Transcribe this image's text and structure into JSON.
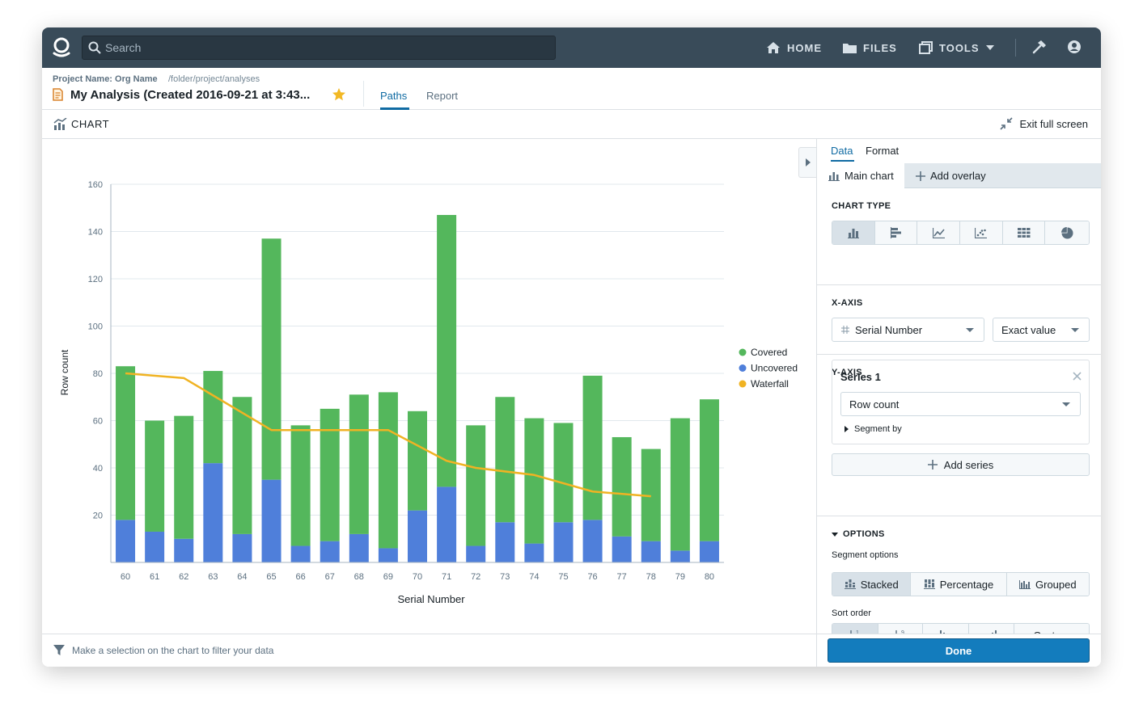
{
  "nav": {
    "search_placeholder": "Search",
    "home_label": "HOME",
    "files_label": "FILES",
    "tools_label": "TOOLS"
  },
  "header": {
    "project_name": "Project Name: Org Name",
    "path": "/folder/project/analyses",
    "title": "My Analysis (Created 2016-09-21 at 3:43...",
    "tabs": [
      {
        "label": "Paths"
      },
      {
        "label": "Report"
      }
    ]
  },
  "chartbar": {
    "label": "CHART",
    "exit_label": "Exit full screen"
  },
  "footer": {
    "hint": "Make a selection on the chart to filter your data"
  },
  "panel": {
    "tabs": [
      {
        "label": "Data"
      },
      {
        "label": "Format"
      }
    ],
    "subtabs": {
      "main": "Main chart",
      "overlay": "Add overlay"
    },
    "chart_type_title": "CHART TYPE",
    "x_axis_title": "X-AXIS",
    "x_field": "Serial Number",
    "x_mode": "Exact value",
    "y_axis_title": "Y-AXIS",
    "series_name": "Series 1",
    "series_metric": "Row count",
    "segment_by": "Segment by",
    "add_series": "Add series",
    "options_title": "OPTIONS",
    "segment_options_label": "Segment options",
    "segment_options": [
      "Stacked",
      "Percentage",
      "Grouped"
    ],
    "sort_order_label": "Sort order",
    "sort_custom": "Custom",
    "done": "Done"
  },
  "colors": {
    "covered": "#54b75c",
    "uncovered": "#4f7fda",
    "waterfall": "#f0b323",
    "accent": "#106ba3",
    "navbar": "#394b59"
  },
  "chart_data": {
    "type": "bar",
    "stacked": true,
    "xlabel": "Serial Number",
    "ylabel": "Row count",
    "ylim": [
      0,
      160
    ],
    "yticks": [
      20,
      40,
      60,
      80,
      100,
      120,
      140,
      160
    ],
    "legend_position": "right",
    "grid": true,
    "categories": [
      "60",
      "61",
      "62",
      "63",
      "64",
      "65",
      "66",
      "67",
      "68",
      "69",
      "70",
      "71",
      "72",
      "73",
      "74",
      "75",
      "76",
      "77",
      "78",
      "79",
      "80"
    ],
    "series": [
      {
        "name": "Uncovered",
        "values": [
          18,
          13,
          10,
          42,
          12,
          35,
          7,
          9,
          12,
          6,
          22,
          32,
          7,
          17,
          8,
          17,
          18,
          11,
          9,
          5,
          9
        ]
      },
      {
        "name": "Covered",
        "values": [
          65,
          47,
          52,
          39,
          58,
          102,
          51,
          56,
          59,
          66,
          42,
          115,
          51,
          53,
          53,
          42,
          61,
          42,
          39,
          56,
          60
        ]
      }
    ],
    "overlay": {
      "name": "Waterfall",
      "type": "line",
      "x": [
        "60",
        "62",
        "65",
        "69",
        "71",
        "72",
        "74",
        "76",
        "78"
      ],
      "values": [
        80,
        78,
        56,
        56,
        43,
        40,
        37,
        30,
        28
      ]
    }
  }
}
